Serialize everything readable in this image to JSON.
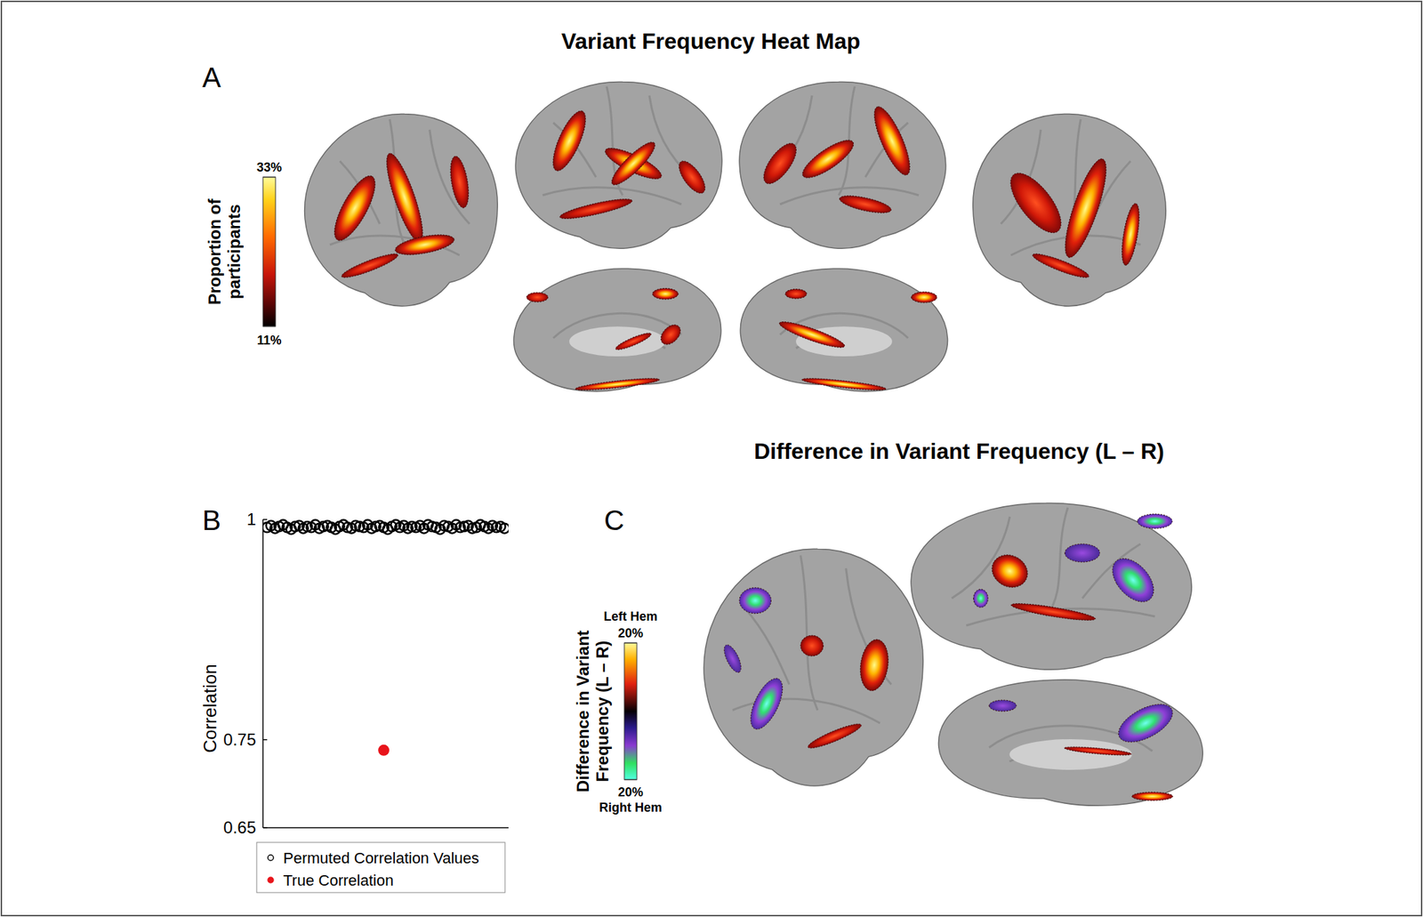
{
  "chart_data": [
    {
      "type": "heatmap",
      "panel_label": "A",
      "title": "Variant Frequency Heat Map",
      "colorbar_label": "Proportion of participants",
      "colorbar_range": [
        11,
        33
      ],
      "colorbar_ticks": [
        {
          "value": 33,
          "label": "33%"
        },
        {
          "value": 11,
          "label": "11%"
        }
      ]
    },
    {
      "type": "scatter",
      "panel_label": "B",
      "ylabel": "Correlation",
      "xlim": [
        0,
        61
      ],
      "ylim": [
        0.65,
        1
      ],
      "yticks": [
        0.65,
        0.75,
        1
      ],
      "tick_labels": "y",
      "legend": "bottom",
      "series": [
        {
          "name": "Permuted Correlation Values",
          "color": "#000000",
          "marker": "open-circle",
          "x": [
            1,
            2,
            3,
            4,
            5,
            6,
            7,
            8,
            9,
            10,
            11,
            12,
            13,
            14,
            15,
            16,
            17,
            18,
            19,
            20,
            21,
            22,
            23,
            24,
            25,
            26,
            27,
            28,
            29,
            30,
            31,
            32,
            33,
            34,
            35,
            36,
            37,
            38,
            39,
            40,
            41,
            42,
            43,
            44,
            45,
            46,
            47,
            48,
            49,
            50,
            51,
            52,
            53,
            54,
            55,
            56,
            57,
            58,
            59,
            60
          ],
          "values": [
            0.991,
            0.993,
            0.99,
            0.992,
            0.994,
            0.991,
            0.989,
            0.992,
            0.993,
            0.99,
            0.992,
            0.991,
            0.994,
            0.99,
            0.992,
            0.993,
            0.991,
            0.989,
            0.992,
            0.994,
            0.991,
            0.99,
            0.993,
            0.992,
            0.991,
            0.994,
            0.99,
            0.992,
            0.993,
            0.991,
            0.989,
            0.992,
            0.994,
            0.991,
            0.993,
            0.99,
            0.992,
            0.991,
            0.993,
            0.99,
            0.994,
            0.992,
            0.991,
            0.989,
            0.993,
            0.992,
            0.99,
            0.994,
            0.991,
            0.992,
            0.993,
            0.99,
            0.991,
            0.994,
            0.992,
            0.99,
            0.993,
            0.991,
            0.992,
            0.99
          ]
        },
        {
          "name": "True Correlation",
          "color": "#e8141b",
          "marker": "filled-circle",
          "x": [
            30
          ],
          "values": [
            0.738
          ]
        }
      ]
    },
    {
      "type": "heatmap",
      "panel_label": "C",
      "title": "Difference in Variant Frequency (L – R)",
      "colorbar_label": "Difference in Variant Frequency (L – R)",
      "colorbar_range": [
        -20,
        20
      ],
      "colorbar_ticks": [
        {
          "value": 20,
          "label": "20%"
        },
        {
          "value": -20,
          "label": "20%"
        }
      ],
      "colorbar_end_labels": [
        "Left Hem",
        "Right Hem"
      ]
    }
  ]
}
